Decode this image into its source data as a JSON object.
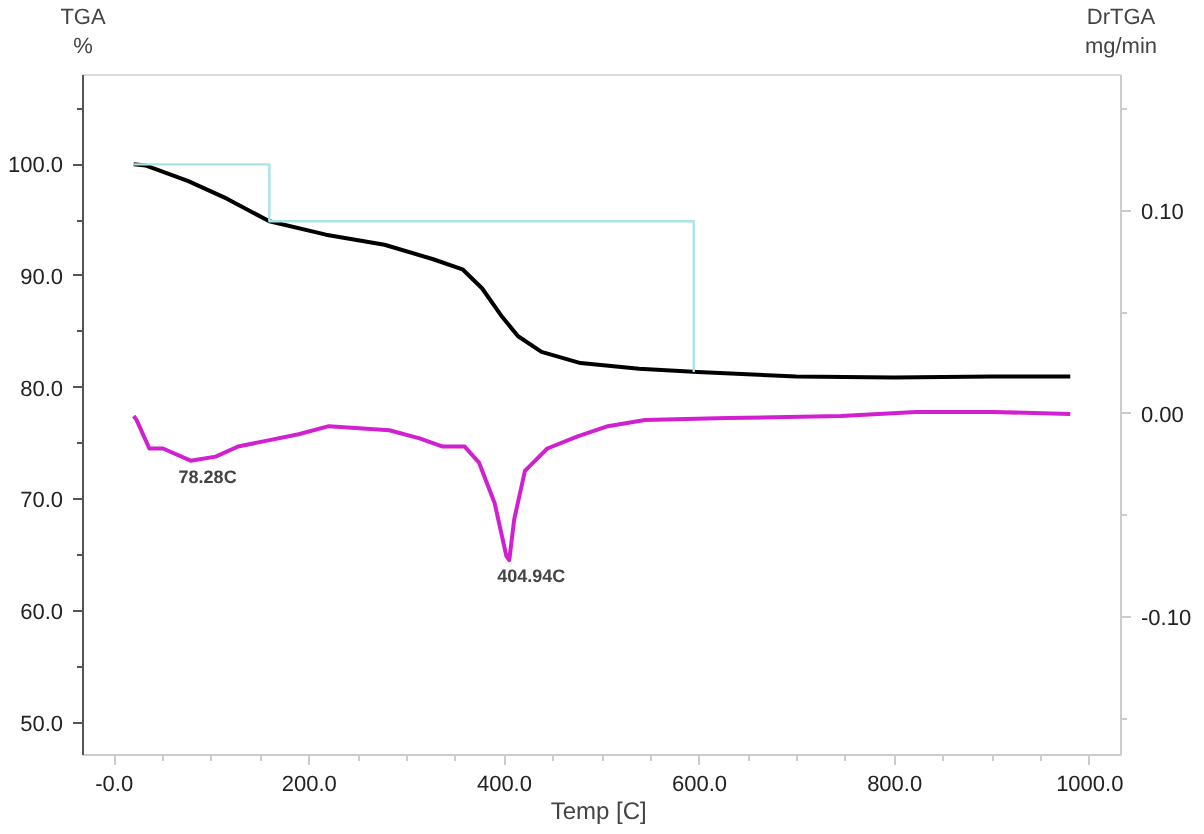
{
  "chart_data": {
    "type": "line",
    "xlabel": "Temp  [C]",
    "ylabel": "TGA\n%",
    "y2label": "DrTGA\nmg/min",
    "xlim": [
      -32,
      1032
    ],
    "ylim": [
      47.1,
      108.0
    ],
    "y2lim": [
      -0.168,
      0.167
    ],
    "xticks": [
      {
        "value": 0,
        "label": "-0.0"
      },
      {
        "value": 50,
        "label": null
      },
      {
        "value": 100,
        "label": null
      },
      {
        "value": 150,
        "label": null
      },
      {
        "value": 200,
        "label": "200.0"
      },
      {
        "value": 250,
        "label": null
      },
      {
        "value": 300,
        "label": null
      },
      {
        "value": 350,
        "label": null
      },
      {
        "value": 400,
        "label": "400.0"
      },
      {
        "value": 450,
        "label": null
      },
      {
        "value": 500,
        "label": null
      },
      {
        "value": 550,
        "label": null
      },
      {
        "value": 600,
        "label": "600.0"
      },
      {
        "value": 650,
        "label": null
      },
      {
        "value": 700,
        "label": null
      },
      {
        "value": 750,
        "label": null
      },
      {
        "value": 800,
        "label": "800.0"
      },
      {
        "value": 850,
        "label": null
      },
      {
        "value": 900,
        "label": null
      },
      {
        "value": 950,
        "label": null
      },
      {
        "value": 1000,
        "label": "1000.0"
      }
    ],
    "yticks": [
      {
        "value": 50,
        "label": "50.0"
      },
      {
        "value": 55,
        "label": null
      },
      {
        "value": 60,
        "label": "60.0"
      },
      {
        "value": 65,
        "label": null
      },
      {
        "value": 70,
        "label": "70.0"
      },
      {
        "value": 75,
        "label": null
      },
      {
        "value": 80,
        "label": "80.0"
      },
      {
        "value": 85,
        "label": null
      },
      {
        "value": 90,
        "label": "90.0"
      },
      {
        "value": 95,
        "label": null
      },
      {
        "value": 100,
        "label": "100.0"
      },
      {
        "value": 105,
        "label": null
      }
    ],
    "y2ticks": [
      {
        "value": -0.15,
        "label": null
      },
      {
        "value": -0.1,
        "label": "-0.10"
      },
      {
        "value": -0.05,
        "label": null
      },
      {
        "value": 0,
        "label": "0.00"
      },
      {
        "value": 0.05,
        "label": null
      },
      {
        "value": 0.1,
        "label": "0.10"
      },
      {
        "value": 0.15,
        "label": null
      }
    ],
    "grid": false,
    "marker": "none",
    "line_style": "solid",
    "series": [
      {
        "color": "#000000",
        "x": [
          20,
          32,
          76,
          116,
          159,
          217,
          277,
          327,
          357,
          377,
          398,
          414,
          438,
          478,
          538,
          598,
          699,
          799,
          900,
          980
        ],
        "values": [
          100.0,
          99.9,
          98.5,
          96.9,
          94.9,
          93.7,
          92.8,
          91.5,
          90.6,
          88.9,
          86.3,
          84.6,
          83.2,
          82.2,
          81.7,
          81.4,
          81.0,
          80.9,
          81.0,
          81.0
        ]
      },
      {
        "color": "#d020d0",
        "axis": "y2",
        "x": [
          20,
          23,
          36,
          50,
          78.28,
          104,
          127,
          158,
          189,
          220,
          251,
          282,
          313,
          336,
          359,
          374,
          390,
          402,
          404.94,
          410,
          421,
          444,
          475,
          506,
          544,
          629,
          745,
          822,
          900,
          980
        ],
        "values": [
          -0.001,
          -0.003,
          -0.017,
          -0.017,
          -0.023,
          -0.021,
          -0.016,
          -0.013,
          -0.01,
          -0.006,
          -0.007,
          -0.008,
          -0.012,
          -0.016,
          -0.016,
          -0.024,
          -0.044,
          -0.07,
          -0.072,
          -0.052,
          -0.028,
          -0.017,
          -0.011,
          -0.006,
          -0.003,
          -0.002,
          -0.001,
          0.001,
          0.001,
          0.0
        ]
      },
      {
        "color": "#a8e4e4",
        "x": [
          20,
          159,
          159,
          594,
          594
        ],
        "values": [
          100.0,
          100.0,
          94.9,
          94.9,
          81.4
        ]
      }
    ],
    "annotations": [
      "78.28C",
      "404.94C"
    ]
  }
}
